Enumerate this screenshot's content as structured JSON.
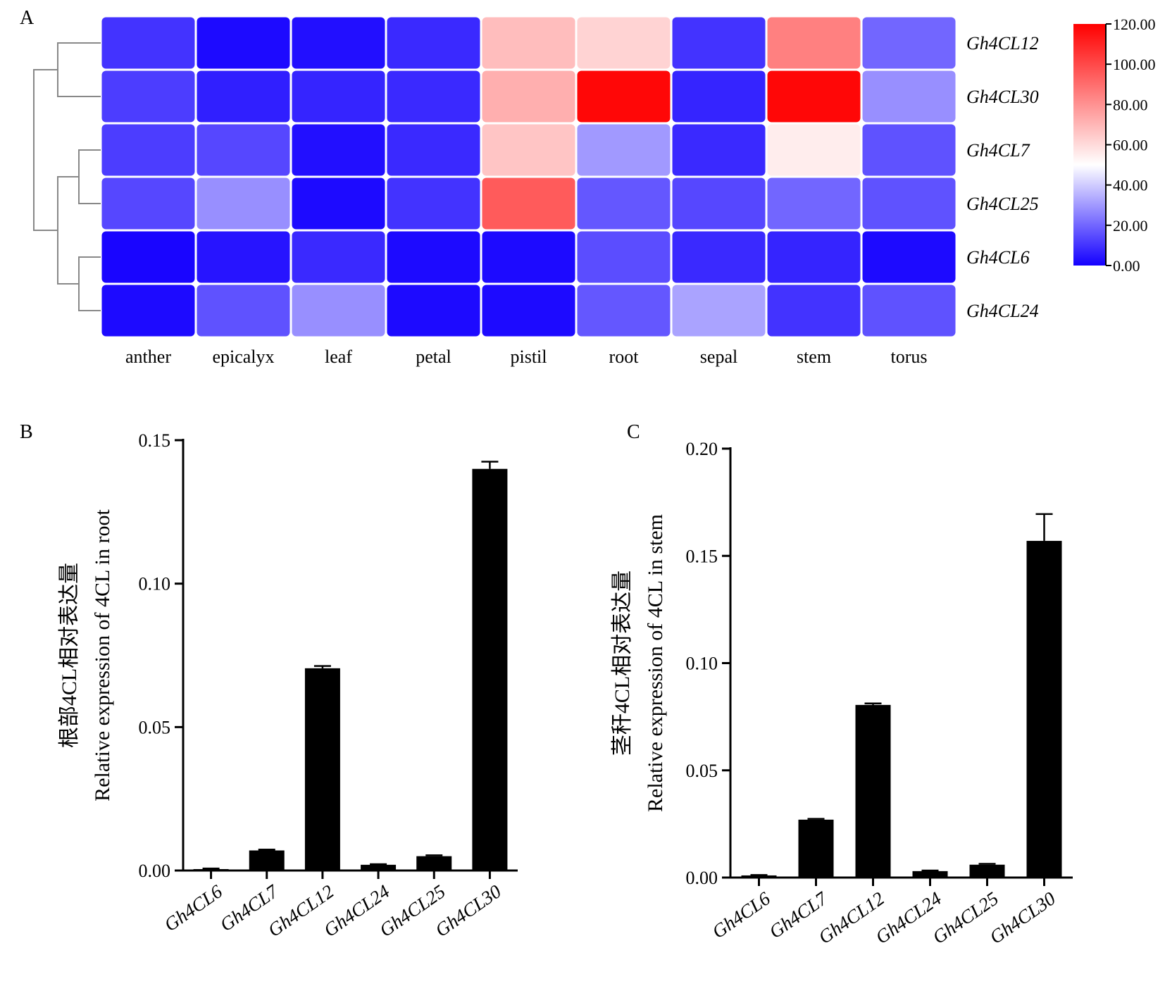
{
  "chart_data": [
    {
      "type": "heatmap",
      "panel": "A",
      "columns": [
        "anther",
        "epicalyx",
        "leaf",
        "petal",
        "pistil",
        "root",
        "sepal",
        "stem",
        "torus"
      ],
      "rows": [
        "Gh4CL12",
        "Gh4CL30",
        "Gh4CL7",
        "Gh4CL25",
        "Gh4CL6",
        "Gh4CL24"
      ],
      "values": [
        [
          10,
          2,
          3,
          8,
          68,
          62,
          10,
          85,
          20
        ],
        [
          12,
          6,
          7,
          8,
          72,
          118,
          7,
          118,
          28
        ],
        [
          12,
          14,
          3,
          8,
          66,
          30,
          8,
          55,
          16
        ],
        [
          14,
          28,
          2,
          10,
          95,
          17,
          14,
          20,
          16
        ],
        [
          1,
          4,
          8,
          2,
          2,
          15,
          8,
          7,
          2
        ],
        [
          2,
          16,
          28,
          2,
          2,
          17,
          32,
          10,
          16
        ]
      ],
      "colorbar": {
        "min": 0,
        "max": 120,
        "ticks": [
          "0.00",
          "20.00",
          "40.00",
          "60.00",
          "80.00",
          "100.00",
          "120.00"
        ],
        "colors": [
          "#1400ff",
          "#ffffff",
          "#ff0000"
        ],
        "midpoint": 50
      }
    },
    {
      "type": "bar",
      "panel": "B",
      "categories": [
        "Gh4CL6",
        "Gh4CL7",
        "Gh4CL12",
        "Gh4CL24",
        "Gh4CL25",
        "Gh4CL30"
      ],
      "values": [
        0.0005,
        0.007,
        0.0705,
        0.002,
        0.005,
        0.14
      ],
      "errors": [
        0.0002,
        0.0003,
        0.0008,
        0.0002,
        0.0003,
        0.0025
      ],
      "ylabel_line1": "根部4CL相对表达量",
      "ylabel_line2": "Relative expression of 4CL in root",
      "ylim": [
        0,
        0.15
      ],
      "yticks": [
        "0.00",
        "0.05",
        "0.10",
        "0.15"
      ]
    },
    {
      "type": "bar",
      "panel": "C",
      "categories": [
        "Gh4CL6",
        "Gh4CL7",
        "Gh4CL12",
        "Gh4CL24",
        "Gh4CL25",
        "Gh4CL30"
      ],
      "values": [
        0.001,
        0.027,
        0.0805,
        0.003,
        0.006,
        0.157
      ],
      "errors": [
        0.0002,
        0.0004,
        0.0007,
        0.0003,
        0.0004,
        0.0125
      ],
      "ylabel_line1": "茎秆4CL相对表达量",
      "ylabel_line2": "Relative expression of 4CL in stem",
      "ylim": [
        0,
        0.2
      ],
      "yticks": [
        "0.00",
        "0.05",
        "0.10",
        "0.15",
        "0.20"
      ]
    }
  ]
}
